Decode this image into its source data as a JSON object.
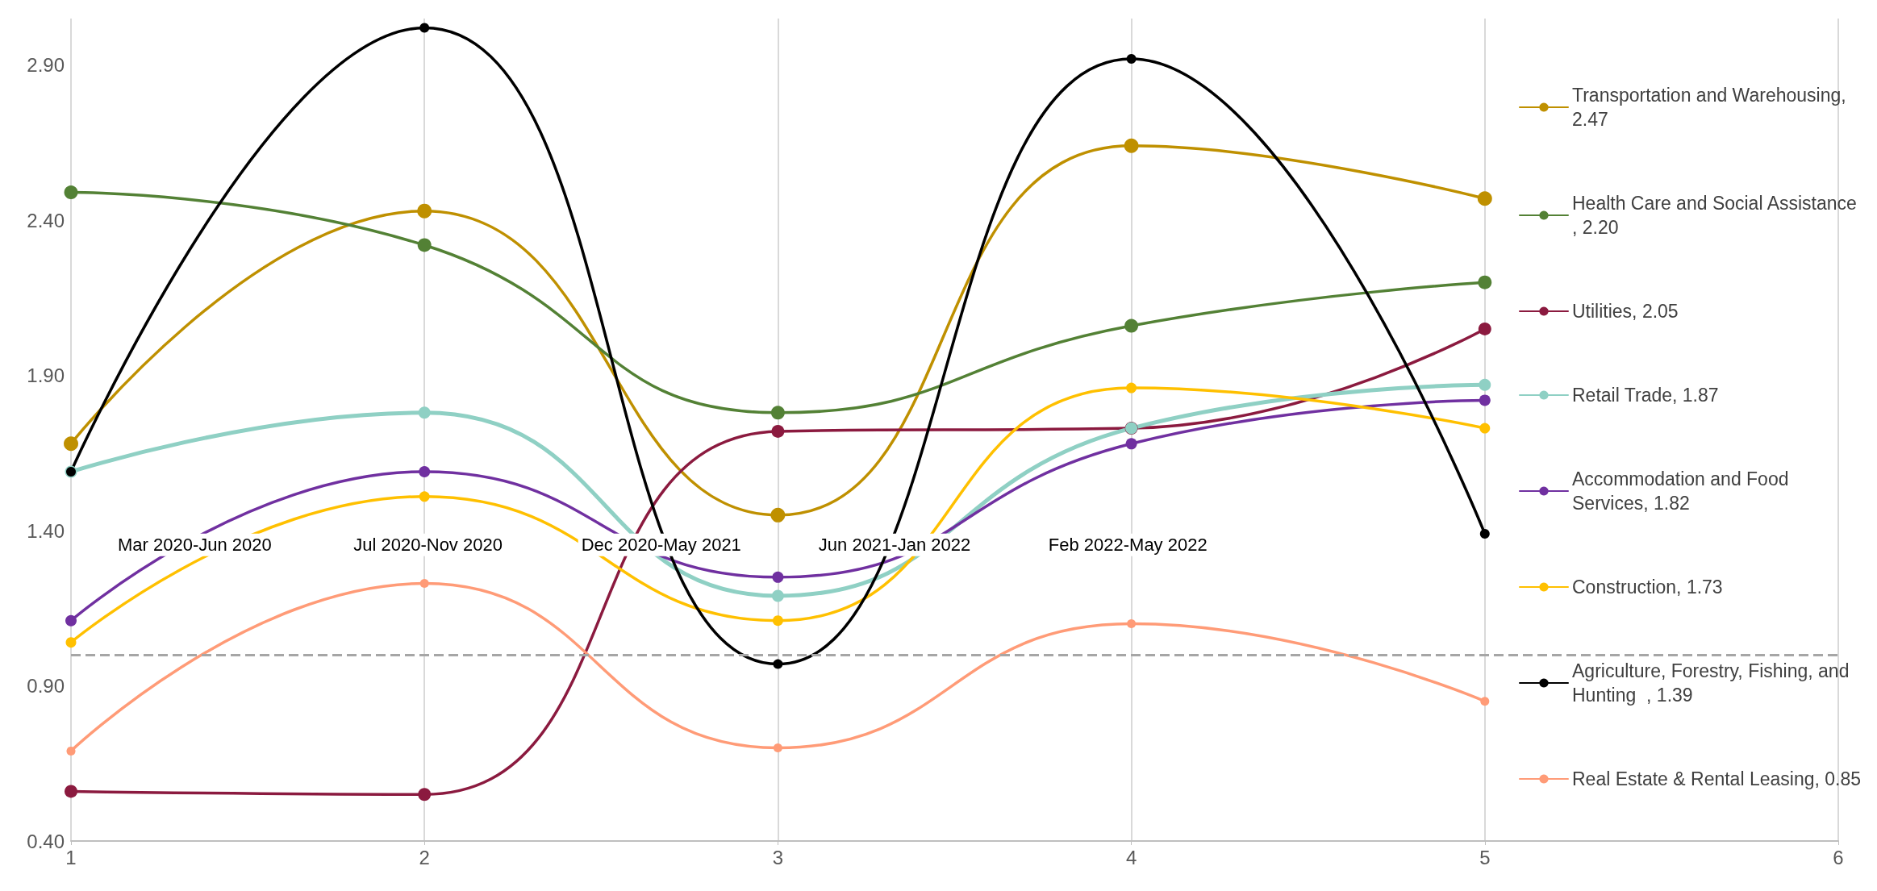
{
  "chart_data": {
    "type": "line",
    "x": [
      1,
      2,
      3,
      4,
      5
    ],
    "series": [
      {
        "name": "Transportation and Warehousing, 2.47",
        "color": "#bf9000",
        "values": [
          1.68,
          2.43,
          1.45,
          2.64,
          2.47
        ]
      },
      {
        "name": "Health Care and Social Assistance, 2.20",
        "color": "#538135",
        "values": [
          2.49,
          2.32,
          1.78,
          2.06,
          2.2
        ]
      },
      {
        "name": "Utilities, 2.05",
        "color": "#8b1a3f",
        "values": [
          0.56,
          0.55,
          1.72,
          1.73,
          2.05
        ]
      },
      {
        "name": "Retail Trade, 1.87",
        "color": "#8fd0c4",
        "values": [
          1.59,
          1.78,
          1.19,
          1.73,
          1.87
        ]
      },
      {
        "name": "Accommodation and Food Services, 1.82",
        "color": "#7030a0",
        "values": [
          1.11,
          1.59,
          1.25,
          1.68,
          1.82
        ]
      },
      {
        "name": "Construction, 1.73",
        "color": "#ffc000",
        "values": [
          1.04,
          1.51,
          1.11,
          1.86,
          1.73
        ]
      },
      {
        "name": "Agriculture, Forestry, Fishing, and Hunting  , 1.39",
        "color": "#000000",
        "values": [
          1.59,
          3.02,
          0.97,
          2.92,
          1.39
        ]
      },
      {
        "name": "Real Estate & Rental Leasing, 0.85",
        "color": "#ff9b77",
        "values": [
          0.69,
          1.23,
          0.7,
          1.1,
          0.85
        ]
      }
    ],
    "xlim": [
      1,
      6
    ],
    "xticks": [
      1,
      2,
      3,
      4,
      5,
      6
    ],
    "ylim": [
      0.4,
      3.05
    ],
    "yticks": [
      {
        "value": 0.4,
        "label": "0.40"
      },
      {
        "value": 0.9,
        "label": "0.90"
      },
      {
        "value": 1.4,
        "label": "1.40"
      },
      {
        "value": 1.9,
        "label": "1.90"
      },
      {
        "value": 2.4,
        "label": "2.40"
      },
      {
        "value": 2.9,
        "label": "2.90"
      }
    ],
    "ref_lines": [
      {
        "axis": "y",
        "value": 1.0,
        "label": null,
        "color": "#a6a6a6",
        "line_style": "dashed"
      }
    ],
    "annotations": [
      "Mar 2020-Jun 2020",
      "Jul 2020-Nov 2020",
      "Dec 2020-May 2021",
      "Jun 2021-Jan 2022",
      "Feb 2022-May 2022"
    ],
    "grid": "x",
    "legend": "right",
    "marker": "circle",
    "line_style": "solid"
  }
}
